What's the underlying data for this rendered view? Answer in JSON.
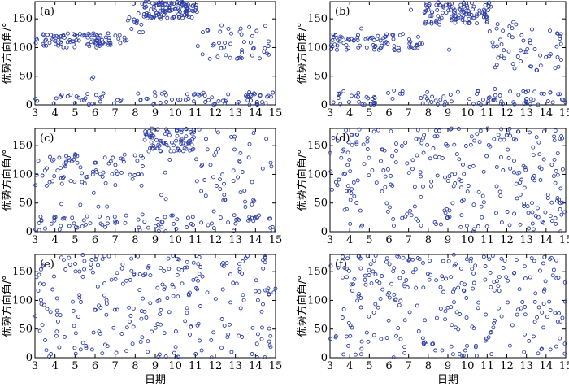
{
  "figure": {
    "marker_color": "#2d3ea8",
    "marker": "open-circle",
    "xlabel": "日期",
    "ylabel": "优势方向角/°",
    "x_ticks": [
      3,
      4,
      5,
      6,
      7,
      8,
      9,
      10,
      11,
      12,
      13,
      14,
      15
    ],
    "y_ticks": [
      0,
      50,
      100,
      150
    ]
  },
  "chart_data": [
    {
      "type": "scatter",
      "panel": "(a)",
      "xlim": [
        3,
        15
      ],
      "ylim": [
        0,
        180
      ],
      "clusters": [
        {
          "x": [
            3.0,
            7.6
          ],
          "y": [
            100,
            125
          ],
          "n": 95
        },
        {
          "x": [
            7.6,
            8.4
          ],
          "y": [
            125,
            180
          ],
          "n": 14
        },
        {
          "x": [
            8.4,
            11.1
          ],
          "y": [
            150,
            180
          ],
          "n": 110
        },
        {
          "x": [
            11.1,
            14.8
          ],
          "y": [
            80,
            140
          ],
          "n": 45
        },
        {
          "x": [
            3.0,
            15.0
          ],
          "y": [
            0,
            22
          ],
          "n": 90
        },
        {
          "x": [
            5.8,
            6.2
          ],
          "y": [
            40,
            50
          ],
          "n": 2
        }
      ]
    },
    {
      "type": "scatter",
      "panel": "(b)",
      "xlim": [
        3,
        15
      ],
      "ylim": [
        0,
        180
      ],
      "clusters": [
        {
          "x": [
            3.0,
            7.8
          ],
          "y": [
            95,
            125
          ],
          "n": 80
        },
        {
          "x": [
            7.8,
            11.2
          ],
          "y": [
            140,
            180
          ],
          "n": 110
        },
        {
          "x": [
            11.2,
            14.9
          ],
          "y": [
            60,
            140
          ],
          "n": 50
        },
        {
          "x": [
            3.0,
            15.0
          ],
          "y": [
            0,
            25
          ],
          "n": 95
        },
        {
          "x": [
            3.0,
            15.0
          ],
          "y": [
            25,
            180
          ],
          "n": 12
        }
      ]
    },
    {
      "type": "scatter",
      "panel": "(c)",
      "xlim": [
        3,
        15
      ],
      "ylim": [
        0,
        180
      ],
      "clusters": [
        {
          "x": [
            3.0,
            8.4
          ],
          "y": [
            80,
            140
          ],
          "n": 70
        },
        {
          "x": [
            8.4,
            11.0
          ],
          "y": [
            140,
            180
          ],
          "n": 80
        },
        {
          "x": [
            11.0,
            15.0
          ],
          "y": [
            50,
            180
          ],
          "n": 40
        },
        {
          "x": [
            3.0,
            15.0
          ],
          "y": [
            0,
            30
          ],
          "n": 90
        },
        {
          "x": [
            3.0,
            15.0
          ],
          "y": [
            30,
            180
          ],
          "n": 30
        }
      ]
    },
    {
      "type": "scatter",
      "panel": "(d)",
      "xlim": [
        3,
        15
      ],
      "ylim": [
        0,
        180
      ],
      "clusters": [
        {
          "x": [
            3.0,
            15.0
          ],
          "y": [
            100,
            180
          ],
          "n": 140
        },
        {
          "x": [
            3.0,
            15.0
          ],
          "y": [
            0,
            100
          ],
          "n": 140
        }
      ]
    },
    {
      "type": "scatter",
      "panel": "(e)",
      "xlim": [
        3,
        15
      ],
      "ylim": [
        0,
        180
      ],
      "clusters": [
        {
          "x": [
            3.0,
            15.0
          ],
          "y": [
            110,
            180
          ],
          "n": 120
        },
        {
          "x": [
            3.0,
            15.0
          ],
          "y": [
            0,
            110
          ],
          "n": 140
        }
      ]
    },
    {
      "type": "scatter",
      "panel": "(f)",
      "xlim": [
        3,
        15
      ],
      "ylim": [
        0,
        180
      ],
      "clusters": [
        {
          "x": [
            3.0,
            15.0
          ],
          "y": [
            120,
            180
          ],
          "n": 120
        },
        {
          "x": [
            3.0,
            15.0
          ],
          "y": [
            0,
            120
          ],
          "n": 150
        }
      ]
    }
  ]
}
